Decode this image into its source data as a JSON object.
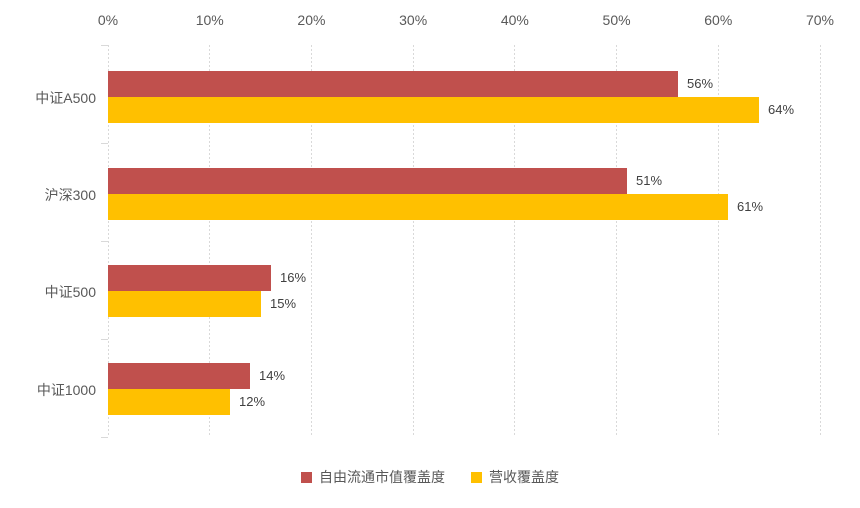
{
  "chart_data": {
    "type": "bar",
    "orientation": "horizontal",
    "title": "",
    "categories": [
      "中证A500",
      "沪深300",
      "中证500",
      "中证1000"
    ],
    "series": [
      {
        "name": "自由流通市值覆盖度",
        "color": "#C0504D",
        "values": [
          56,
          51,
          16,
          14
        ],
        "labels": [
          "56%",
          "51%",
          "16%",
          "14%"
        ]
      },
      {
        "name": "营收覆盖度",
        "color": "#FFC000",
        "values": [
          64,
          61,
          15,
          12
        ],
        "labels": [
          "64%",
          "61%",
          "15%",
          "12%"
        ]
      }
    ],
    "x_axis": {
      "min": 0,
      "max": 70,
      "tick_step": 10,
      "tick_labels": [
        "0%",
        "10%",
        "20%",
        "30%",
        "40%",
        "50%",
        "60%",
        "70%"
      ],
      "position": "top"
    },
    "grid": true,
    "legend_position": "bottom"
  },
  "style": {
    "background": "#FFFFFF",
    "gridline_color": "#D9D9D9",
    "axis_text_color": "#595959",
    "category_text_color": "#595959",
    "value_label_color": "#404040"
  }
}
